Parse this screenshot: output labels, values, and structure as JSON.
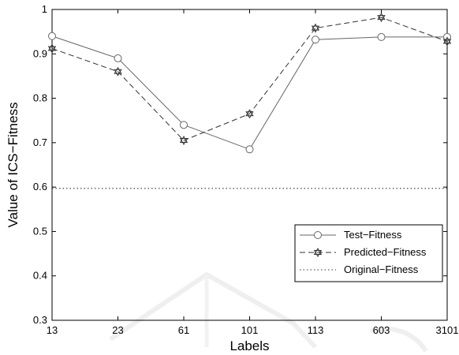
{
  "chart_data": {
    "type": "line",
    "categories": [
      "13",
      "23",
      "61",
      "101",
      "113",
      "603",
      "3101"
    ],
    "xlabel": "Labels",
    "ylabel": "Value of ICS−Fitness",
    "ylim": [
      0.3,
      1.0
    ],
    "yticks": [
      "0.3",
      "0.4",
      "0.5",
      "0.6",
      "0.7",
      "0.8",
      "0.9",
      "1"
    ],
    "grid": false,
    "legend_position": "lower-right",
    "series": [
      {
        "name": "Test−Fitness",
        "values": [
          0.94,
          0.89,
          0.74,
          0.685,
          0.932,
          0.938,
          0.938
        ],
        "line_style": "solid",
        "marker": "circle",
        "color": "#666666"
      },
      {
        "name": "Predicted−Fitness",
        "values": [
          0.912,
          0.86,
          0.705,
          0.765,
          0.958,
          0.982,
          0.928
        ],
        "line_style": "dashed",
        "marker": "hexagram",
        "color": "#333333"
      },
      {
        "name": "Original−Fitness",
        "values": [
          0.597,
          0.597,
          0.597,
          0.597,
          0.597,
          0.597,
          0.597
        ],
        "line_style": "dotted",
        "marker": "none",
        "color": "#333333"
      }
    ]
  }
}
